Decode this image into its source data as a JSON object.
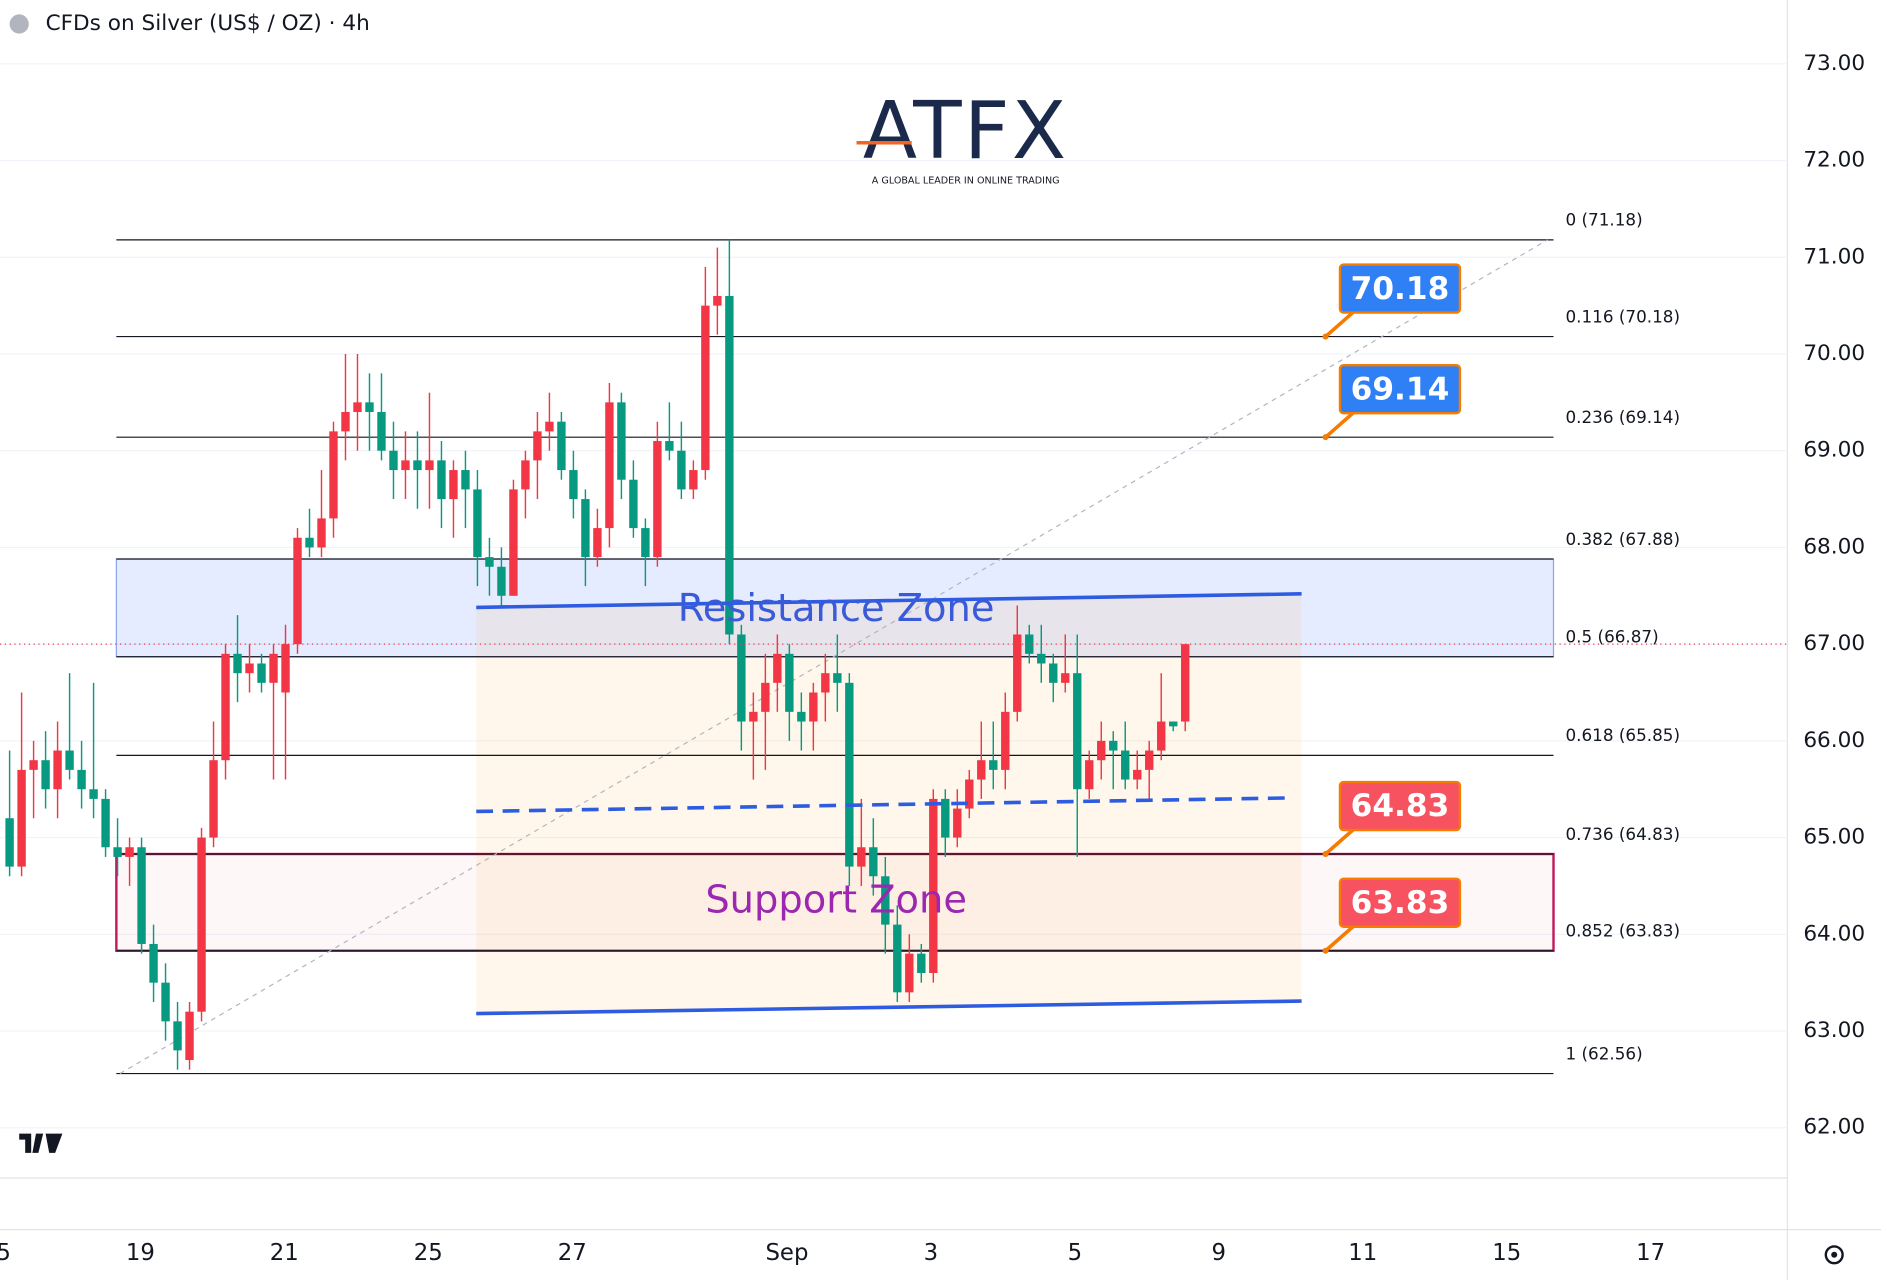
{
  "chart_data": {
    "type": "candlestick",
    "title": "CFDs on Silver (US$ / OZ) · 4h",
    "logo": {
      "name": "ATFX",
      "tagline": "A GLOBAL LEADER IN ONLINE TRADING"
    },
    "up_color": "#f23645",
    "down_color": "#089981",
    "grid": true,
    "open": [
      65.2,
      64.7,
      65.7,
      65.8,
      65.5,
      65.9,
      65.7,
      65.5,
      65.4,
      64.9,
      64.8,
      64.9,
      63.9,
      63.5,
      63.1,
      62.7,
      63.2,
      65.0,
      65.8,
      66.9,
      66.7,
      66.8,
      66.6,
      66.5,
      67.0,
      68.1,
      68.0,
      68.3,
      69.2,
      69.4,
      69.5,
      69.4,
      69.0,
      68.8,
      68.9,
      68.8,
      68.9,
      68.5,
      68.8,
      68.6,
      67.9,
      67.8,
      67.5,
      68.6,
      68.9,
      69.2,
      69.3,
      68.8,
      68.5,
      67.9,
      68.2,
      69.5,
      68.7,
      68.2,
      67.9,
      69.1,
      69.0,
      68.6,
      68.8,
      70.5,
      70.6,
      67.1,
      66.2,
      66.3,
      66.6,
      66.9,
      66.3,
      66.2,
      66.5,
      66.7,
      66.6,
      64.7,
      64.9,
      64.6,
      64.1,
      63.4,
      63.8,
      63.6,
      65.4,
      65.0,
      65.3,
      65.6,
      65.8,
      65.7,
      66.3,
      67.1,
      66.9,
      66.8,
      66.6,
      66.7,
      65.5,
      65.8,
      66.0,
      65.9,
      65.6,
      65.7,
      65.9,
      66.2,
      66.2
    ],
    "high": [
      65.9,
      66.5,
      66.0,
      66.1,
      66.2,
      66.7,
      66.0,
      66.6,
      65.5,
      65.2,
      65.0,
      65.0,
      64.1,
      63.7,
      63.3,
      63.3,
      65.1,
      66.2,
      67.0,
      67.3,
      67.0,
      66.9,
      67.0,
      67.2,
      68.2,
      68.4,
      68.8,
      69.3,
      70.0,
      70.0,
      69.8,
      69.8,
      69.3,
      69.2,
      69.2,
      69.6,
      69.1,
      68.9,
      69.0,
      68.8,
      68.1,
      68.0,
      68.7,
      69.0,
      69.4,
      69.6,
      69.4,
      69.0,
      68.6,
      68.4,
      69.7,
      69.6,
      68.9,
      68.3,
      69.3,
      69.5,
      69.3,
      68.9,
      70.9,
      71.1,
      71.18,
      67.2,
      66.5,
      66.9,
      67.1,
      67.0,
      66.5,
      66.6,
      66.9,
      67.1,
      66.7,
      65.4,
      65.2,
      64.8,
      64.3,
      64.0,
      63.9,
      65.5,
      65.5,
      65.5,
      65.7,
      66.2,
      66.2,
      66.5,
      67.4,
      67.2,
      67.2,
      66.9,
      67.1,
      67.1,
      65.9,
      66.2,
      66.1,
      66.2,
      65.9,
      66.0,
      66.7,
      66.2,
      67.0
    ],
    "low": [
      64.6,
      64.6,
      65.2,
      65.3,
      65.2,
      65.6,
      65.3,
      65.2,
      64.8,
      64.6,
      64.5,
      63.8,
      63.3,
      62.9,
      62.6,
      62.6,
      63.1,
      64.9,
      65.6,
      66.4,
      66.5,
      66.5,
      65.6,
      65.6,
      66.9,
      67.9,
      67.9,
      68.1,
      68.9,
      69.0,
      69.0,
      68.9,
      68.5,
      68.5,
      68.4,
      68.4,
      68.2,
      68.1,
      68.2,
      67.6,
      67.5,
      67.4,
      67.5,
      68.3,
      68.5,
      69.0,
      68.7,
      68.3,
      67.6,
      67.8,
      68.0,
      68.5,
      68.1,
      67.6,
      67.8,
      68.9,
      68.5,
      68.5,
      68.7,
      70.2,
      67.0,
      65.9,
      65.6,
      65.7,
      66.3,
      66.0,
      65.9,
      65.9,
      66.2,
      66.3,
      64.5,
      64.5,
      64.4,
      63.8,
      63.3,
      63.3,
      63.5,
      63.5,
      64.8,
      64.9,
      65.2,
      65.4,
      65.5,
      65.5,
      66.2,
      66.8,
      66.6,
      66.4,
      66.5,
      64.8,
      65.4,
      65.6,
      65.5,
      65.5,
      65.5,
      65.4,
      65.8,
      66.1,
      66.1
    ],
    "close": [
      64.7,
      65.7,
      65.8,
      65.5,
      65.9,
      65.7,
      65.5,
      65.4,
      64.9,
      64.8,
      64.9,
      63.9,
      63.5,
      63.1,
      62.8,
      63.2,
      65.0,
      65.8,
      66.9,
      66.7,
      66.8,
      66.6,
      66.9,
      67.0,
      68.1,
      68.0,
      68.3,
      69.2,
      69.4,
      69.5,
      69.4,
      69.0,
      68.8,
      68.9,
      68.8,
      68.9,
      68.5,
      68.8,
      68.6,
      67.9,
      67.8,
      67.5,
      68.6,
      68.9,
      69.2,
      69.3,
      68.8,
      68.5,
      67.9,
      68.2,
      69.5,
      68.7,
      68.2,
      67.9,
      69.1,
      69.0,
      68.6,
      68.8,
      70.5,
      70.6,
      67.1,
      66.2,
      66.3,
      66.6,
      66.9,
      66.3,
      66.2,
      66.5,
      66.7,
      66.6,
      64.7,
      64.9,
      64.6,
      64.1,
      63.4,
      63.8,
      63.6,
      65.4,
      65.0,
      65.3,
      65.6,
      65.8,
      65.7,
      66.3,
      67.1,
      66.9,
      66.8,
      66.6,
      66.7,
      65.5,
      65.8,
      66.0,
      65.9,
      65.6,
      65.7,
      65.9,
      66.2,
      66.15,
      67.0
    ],
    "x_labels": [
      "5",
      "19",
      "21",
      "25",
      "27",
      "Sep",
      "3",
      "5",
      "9",
      "11",
      "15",
      "17"
    ],
    "ylim": [
      61.48,
      73.66
    ],
    "yticks": [
      {
        "value": 62,
        "label": "62.00"
      },
      {
        "value": 63,
        "label": "63.00"
      },
      {
        "value": 64,
        "label": "64.00"
      },
      {
        "value": 65,
        "label": "65.00"
      },
      {
        "value": 66,
        "label": "66.00"
      },
      {
        "value": 67,
        "label": "67.00"
      },
      {
        "value": 68,
        "label": "68.00"
      },
      {
        "value": 69,
        "label": "69.00"
      },
      {
        "value": 70,
        "label": "70.00"
      },
      {
        "value": 71,
        "label": "71.00"
      },
      {
        "value": 72,
        "label": "72.00"
      },
      {
        "value": 73,
        "label": "73.00"
      }
    ],
    "fib_levels": [
      {
        "value": 71.18,
        "label": "0 (71.18)"
      },
      {
        "value": 70.18,
        "label": "0.116 (70.18)"
      },
      {
        "value": 69.14,
        "label": "0.236 (69.14)"
      },
      {
        "value": 67.88,
        "label": "0.382 (67.88)"
      },
      {
        "value": 66.87,
        "label": "0.5 (66.87)"
      },
      {
        "value": 65.85,
        "label": "0.618 (65.85)"
      },
      {
        "value": 64.83,
        "label": "0.736 (64.83)"
      },
      {
        "value": 63.83,
        "label": "0.852 (63.83)"
      },
      {
        "value": 62.56,
        "label": "1 (62.56)"
      }
    ],
    "zones": [
      {
        "label": "Resistance Zone",
        "range": [
          66.87,
          67.88
        ]
      },
      {
        "label": "Support Zone",
        "range": [
          63.83,
          64.83
        ]
      }
    ],
    "channel": {
      "upper": [
        67.38,
        67.52
      ],
      "middle": [
        65.27,
        65.41
      ],
      "lower": [
        63.18,
        63.31
      ]
    },
    "callouts": [
      {
        "value": 70.18,
        "color": "#2f7ff5"
      },
      {
        "value": 69.14,
        "color": "#2f7ff5"
      },
      {
        "value": 64.83,
        "color": "#f7525f"
      },
      {
        "value": 63.83,
        "color": "#f7525f"
      }
    ]
  }
}
